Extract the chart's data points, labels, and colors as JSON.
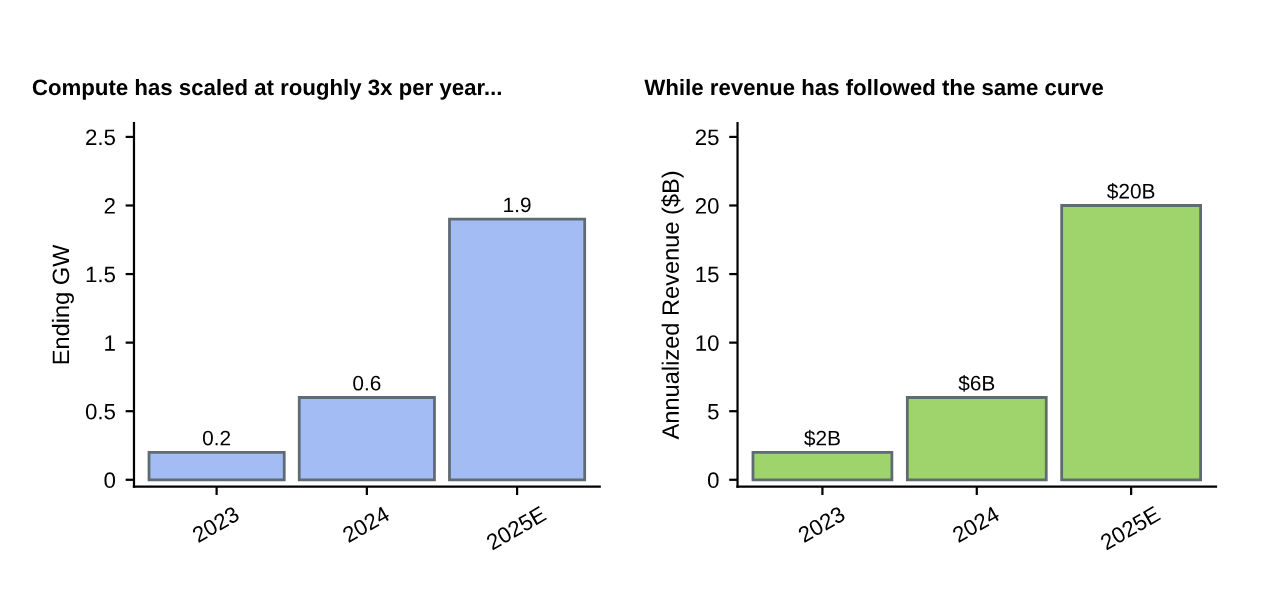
{
  "chart_data": [
    {
      "type": "bar",
      "title": "Compute has scaled at roughly 3x per year...",
      "ylabel": "Ending GW",
      "categories": [
        "2023",
        "2024",
        "2025E"
      ],
      "values": [
        0.2,
        0.6,
        1.9
      ],
      "color": "#a3bcf4",
      "ylim": [
        -0.05,
        2.6
      ],
      "yticks": [
        0,
        0.5,
        1,
        1.5,
        2,
        2.5
      ],
      "data_labels": true,
      "grid": false,
      "legend": false
    },
    {
      "type": "bar",
      "title": "While revenue has followed the same curve",
      "ylabel": "Annualized Revenue ($B)",
      "categories": [
        "2023",
        "2024",
        "2025E"
      ],
      "values": [
        2,
        6,
        20
      ],
      "value_labels": [
        "$2B",
        "$6B",
        "$20B"
      ],
      "color": "#9fd46d",
      "ylim": [
        -0.5,
        26
      ],
      "yticks": [
        0,
        5,
        10,
        15,
        20,
        25
      ],
      "grid": false,
      "legend": false
    }
  ]
}
